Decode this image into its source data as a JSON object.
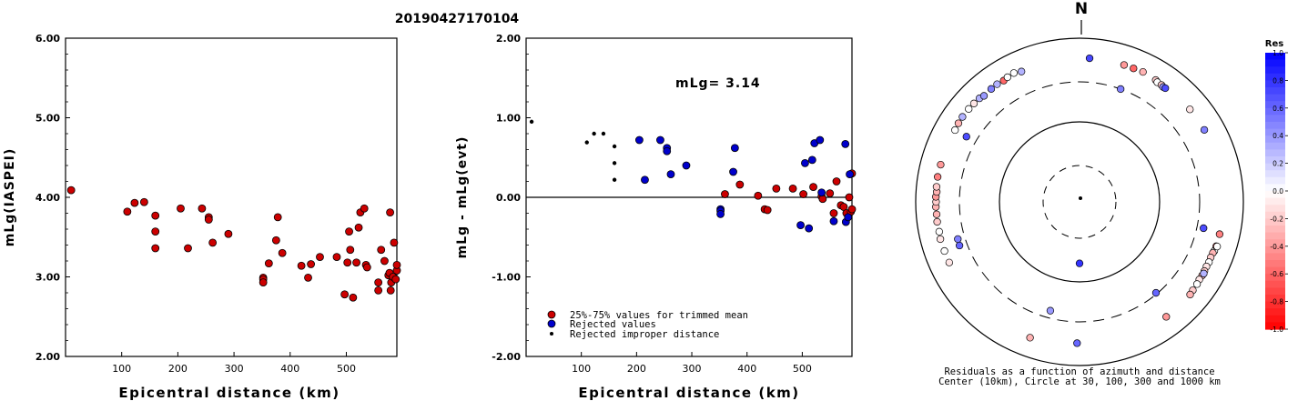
{
  "title": "20190427170104",
  "chart_data": [
    {
      "type": "scatter",
      "xlabel": "Epicentral distance (km)",
      "ylabel": "mLg(IASPEI)",
      "xlim": [
        0,
        590
      ],
      "ylim": [
        2.0,
        6.0
      ],
      "x_ticks": [
        "100",
        "200",
        "300",
        "400",
        "500"
      ],
      "x_tick_values": [
        100,
        200,
        300,
        400,
        500
      ],
      "y_ticks": [
        "2.00",
        "3.00",
        "4.00",
        "5.00",
        "6.00"
      ],
      "y_tick_values": [
        2,
        3,
        4,
        5,
        6
      ],
      "series": [
        {
          "color": "#cc0000",
          "points": [
            [
              10,
              4.09
            ],
            [
              110,
              3.82
            ],
            [
              123,
              3.93
            ],
            [
              140,
              3.94
            ],
            [
              160,
              3.77
            ],
            [
              160,
              3.57
            ],
            [
              160,
              3.36
            ],
            [
              205,
              3.86
            ],
            [
              218,
              3.36
            ],
            [
              243,
              3.86
            ],
            [
              255,
              3.75
            ],
            [
              255,
              3.72
            ],
            [
              262,
              3.43
            ],
            [
              290,
              3.54
            ],
            [
              352,
              2.99
            ],
            [
              352,
              2.97
            ],
            [
              352,
              2.93
            ],
            [
              362,
              3.17
            ],
            [
              375,
              3.46
            ],
            [
              378,
              3.75
            ],
            [
              386,
              3.3
            ],
            [
              420,
              3.14
            ],
            [
              432,
              2.99
            ],
            [
              437,
              3.16
            ],
            [
              453,
              3.25
            ],
            [
              483,
              3.25
            ],
            [
              497,
              2.78
            ],
            [
              502,
              3.18
            ],
            [
              505,
              3.57
            ],
            [
              507,
              3.34
            ],
            [
              512,
              2.74
            ],
            [
              518,
              3.18
            ],
            [
              522,
              3.62
            ],
            [
              525,
              3.81
            ],
            [
              532,
              3.86
            ],
            [
              535,
              3.15
            ],
            [
              537,
              3.12
            ],
            [
              557,
              2.93
            ],
            [
              557,
              2.83
            ],
            [
              562,
              3.34
            ],
            [
              568,
              3.2
            ],
            [
              575,
              3.02
            ],
            [
              577,
              3.05
            ],
            [
              578,
              3.81
            ],
            [
              579,
              2.83
            ],
            [
              580,
              2.93
            ],
            [
              583,
              3.0
            ],
            [
              585,
              3.43
            ],
            [
              588,
              2.97
            ],
            [
              590,
              3.08
            ],
            [
              590,
              3.15
            ]
          ]
        }
      ]
    },
    {
      "type": "scatter",
      "xlabel": "Epicentral distance (km)",
      "ylabel": "mLg - mLg(evt)",
      "annotation": "mLg= 3.14",
      "xlim": [
        0,
        590
      ],
      "ylim": [
        -2.0,
        2.0
      ],
      "x_ticks": [
        "100",
        "200",
        "300",
        "400",
        "500"
      ],
      "x_tick_values": [
        100,
        200,
        300,
        400,
        500
      ],
      "y_ticks": [
        "-2.00",
        "-1.00",
        "0.00",
        "1.00",
        "2.00"
      ],
      "y_tick_values": [
        -2,
        -1,
        0,
        1,
        2
      ],
      "series": [
        {
          "name": "25%-75% values for trimmed mean",
          "color": "#cc0000",
          "marker": "circle",
          "points": [
            [
              360,
              0.04
            ],
            [
              387,
              0.16
            ],
            [
              420,
              0.02
            ],
            [
              432,
              -0.15
            ],
            [
              437,
              -0.16
            ],
            [
              453,
              0.11
            ],
            [
              483,
              0.11
            ],
            [
              502,
              0.04
            ],
            [
              520,
              0.13
            ],
            [
              535,
              0.01
            ],
            [
              537,
              -0.02
            ],
            [
              550,
              0.05
            ],
            [
              557,
              -0.2
            ],
            [
              562,
              0.2
            ],
            [
              570,
              -0.1
            ],
            [
              575,
              -0.12
            ],
            [
              580,
              -0.2
            ],
            [
              585,
              0.0
            ],
            [
              588,
              -0.18
            ],
            [
              590,
              -0.15
            ],
            [
              590,
              0.3
            ]
          ]
        },
        {
          "name": "Rejected values",
          "color": "#0000cc",
          "marker": "circle",
          "points": [
            [
              205,
              0.72
            ],
            [
              215,
              0.22
            ],
            [
              243,
              0.72
            ],
            [
              255,
              0.62
            ],
            [
              255,
              0.58
            ],
            [
              262,
              0.29
            ],
            [
              290,
              0.4
            ],
            [
              352,
              -0.15
            ],
            [
              352,
              -0.17
            ],
            [
              352,
              -0.21
            ],
            [
              375,
              0.32
            ],
            [
              378,
              0.62
            ],
            [
              497,
              -0.35
            ],
            [
              505,
              0.43
            ],
            [
              512,
              -0.39
            ],
            [
              518,
              0.47
            ],
            [
              522,
              0.68
            ],
            [
              532,
              0.72
            ],
            [
              535,
              0.06
            ],
            [
              557,
              -0.3
            ],
            [
              578,
              0.67
            ],
            [
              579,
              -0.31
            ],
            [
              583,
              -0.25
            ],
            [
              586,
              0.29
            ]
          ]
        },
        {
          "name": "Rejected improper distance",
          "color": "#000000",
          "marker": "dot",
          "points": [
            [
              10,
              0.95
            ],
            [
              110,
              0.69
            ],
            [
              123,
              0.8
            ],
            [
              140,
              0.8
            ],
            [
              160,
              0.64
            ],
            [
              160,
              0.43
            ],
            [
              160,
              0.22
            ]
          ]
        }
      ],
      "legend_position": "bottom-left"
    },
    {
      "type": "polar-scatter",
      "north_label": "N",
      "caption_line1": "Residuals as a function of azimuth and distance",
      "caption_line2": "Center (10km), Circle at 30, 100, 300 and 1000 km",
      "colorbar": {
        "title": "Res",
        "ticks": [
          "1.0",
          "0.8",
          "0.6",
          "0.4",
          "0.2",
          "0.0",
          "-0.2",
          "-0.4",
          "-0.6",
          "-0.8",
          "-1.0"
        ],
        "tick_values": [
          1.0,
          0.8,
          0.6,
          0.4,
          0.2,
          0.0,
          -0.2,
          -0.4,
          -0.6,
          -0.8,
          -1.0
        ]
      },
      "points": [
        {
          "az": 4,
          "dist": 580,
          "res": 0.72
        },
        {
          "az": 18,
          "dist": 580,
          "res": -0.4
        },
        {
          "az": 22,
          "dist": 580,
          "res": -0.6
        },
        {
          "az": 26,
          "dist": 590,
          "res": -0.3
        },
        {
          "az": 32,
          "dist": 575,
          "res": -0.2
        },
        {
          "az": 33,
          "dist": 560,
          "res": 0.0
        },
        {
          "az": 35,
          "dist": 560,
          "res": -0.2
        },
        {
          "az": 36,
          "dist": 550,
          "res": 0.4
        },
        {
          "az": 37,
          "dist": 555,
          "res": 0.7
        },
        {
          "az": 50,
          "dist": 580,
          "res": -0.1
        },
        {
          "az": 110,
          "dist": 570,
          "res": 0.0
        },
        {
          "az": 111,
          "dist": 560,
          "res": -0.3
        },
        {
          "az": 113,
          "dist": 555,
          "res": -0.2
        },
        {
          "az": 115,
          "dist": 560,
          "res": 0.0
        },
        {
          "az": 117,
          "dist": 555,
          "res": -0.1
        },
        {
          "az": 119,
          "dist": 560,
          "res": -0.2
        },
        {
          "az": 121,
          "dist": 565,
          "res": -0.3
        },
        {
          "az": 123,
          "dist": 560,
          "res": -0.1
        },
        {
          "az": 125,
          "dist": 570,
          "res": 0.0
        },
        {
          "az": 128,
          "dist": 575,
          "res": -0.2
        },
        {
          "az": 130,
          "dist": 585,
          "res": -0.3
        },
        {
          "az": 143,
          "dist": 580,
          "res": -0.4
        },
        {
          "az": 120,
          "dist": 570,
          "res": 0.3
        },
        {
          "az": 108,
          "dist": 575,
          "res": -0.6
        },
        {
          "az": 103,
          "dist": 575,
          "res": -0.5
        },
        {
          "az": 181,
          "dist": 540,
          "res": 0.6
        },
        {
          "az": 200,
          "dist": 590,
          "res": -0.3
        },
        {
          "az": 245,
          "dist": 575,
          "res": -0.1
        },
        {
          "az": 250,
          "dist": 575,
          "res": 0.0
        },
        {
          "az": 255,
          "dist": 580,
          "res": -0.1
        },
        {
          "az": 258,
          "dist": 570,
          "res": 0.0
        },
        {
          "az": 262,
          "dist": 575,
          "res": -0.2
        },
        {
          "az": 265,
          "dist": 570,
          "res": -0.3
        },
        {
          "az": 268,
          "dist": 575,
          "res": -0.3
        },
        {
          "az": 270,
          "dist": 570,
          "res": -0.2
        },
        {
          "az": 272,
          "dist": 575,
          "res": -0.4
        },
        {
          "az": 274,
          "dist": 565,
          "res": -0.3
        },
        {
          "az": 276,
          "dist": 575,
          "res": -0.2
        },
        {
          "az": 280,
          "dist": 580,
          "res": -0.5
        },
        {
          "az": 285,
          "dist": 575,
          "res": -0.4
        },
        {
          "az": 300,
          "dist": 575,
          "res": 0.0
        },
        {
          "az": 303,
          "dist": 585,
          "res": -0.3
        },
        {
          "az": 306,
          "dist": 590,
          "res": 0.3
        },
        {
          "az": 310,
          "dist": 590,
          "res": 0.0
        },
        {
          "az": 313,
          "dist": 585,
          "res": -0.1
        },
        {
          "az": 316,
          "dist": 580,
          "res": 0.3
        },
        {
          "az": 318,
          "dist": 560,
          "res": 0.4
        },
        {
          "az": 322,
          "dist": 570,
          "res": 0.5
        },
        {
          "az": 325,
          "dist": 575,
          "res": 0.3
        },
        {
          "az": 328,
          "dist": 565,
          "res": -0.6
        },
        {
          "az": 330,
          "dist": 580,
          "res": 0.0
        },
        {
          "az": 333,
          "dist": 590,
          "res": 0.0
        },
        {
          "az": 336,
          "dist": 560,
          "res": 0.3
        },
        {
          "az": 250,
          "dist": 370,
          "res": 0.6
        },
        {
          "az": 253,
          "dist": 365,
          "res": 0.5
        },
        {
          "az": 300,
          "dist": 400,
          "res": 0.7
        },
        {
          "az": 20,
          "dist": 300,
          "res": 0.5
        },
        {
          "az": 140,
          "dist": 290,
          "res": 0.6
        },
        {
          "az": 102,
          "dist": 360,
          "res": 0.7
        },
        {
          "az": 195,
          "dist": 245,
          "res": 0.4
        },
        {
          "az": 180,
          "dist": 60,
          "res": 0.8
        },
        {
          "az": 60,
          "dist": 580,
          "res": 0.5
        },
        {
          "az": 108,
          "dist": 590,
          "res": 0.0
        }
      ]
    }
  ]
}
